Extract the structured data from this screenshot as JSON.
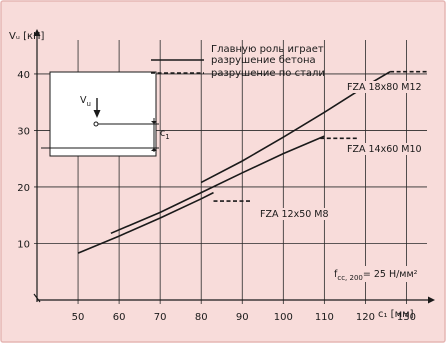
{
  "chart_data": {
    "type": "line",
    "xlabel": "c₁ [мм]",
    "ylabel": "Vᵤ [кН]",
    "xlim": [
      40,
      135
    ],
    "ylim": [
      0,
      46
    ],
    "x_ticks": [
      50,
      60,
      70,
      80,
      90,
      100,
      110,
      120,
      130
    ],
    "y_ticks": [
      10,
      20,
      30,
      40
    ],
    "grid": true,
    "legend": {
      "title": "Главную роль играет",
      "items": [
        {
          "label": "разрушение бетона",
          "style": "solid"
        },
        {
          "label": "разрушение по стали",
          "style": "dashed"
        }
      ],
      "placement": "top"
    },
    "series": [
      {
        "name": "FZA 12x50 M8",
        "concrete": [
          [
            50,
            8.3
          ],
          [
            60,
            11.3
          ],
          [
            70,
            14.5
          ],
          [
            80,
            17.9
          ],
          [
            83,
            19.0
          ]
        ],
        "steel": [
          [
            83,
            17.5
          ],
          [
            92,
            17.5
          ]
        ]
      },
      {
        "name": "FZA 14x60 M10",
        "concrete": [
          [
            58,
            11.8
          ],
          [
            70,
            15.5
          ],
          [
            80,
            19.0
          ],
          [
            90,
            22.5
          ],
          [
            100,
            25.9
          ],
          [
            110,
            29.0
          ]
        ],
        "steel": [
          [
            109,
            28.6
          ],
          [
            118,
            28.6
          ]
        ]
      },
      {
        "name": "FZA 18x80 M12",
        "concrete": [
          [
            80,
            20.8
          ],
          [
            90,
            24.6
          ],
          [
            100,
            28.8
          ],
          [
            110,
            33.2
          ],
          [
            120,
            37.8
          ],
          [
            126,
            40.4
          ]
        ],
        "steel": [
          [
            126,
            40.4
          ],
          [
            135,
            40.4
          ]
        ]
      }
    ],
    "annotations": {
      "strength": "f",
      "strength_sub": "cc, 200",
      "strength_value": "= 25 Н/мм²",
      "inset_load_label": "V",
      "inset_load_sub": "u",
      "inset_edge_label": "c",
      "inset_edge_sub": "1"
    }
  }
}
